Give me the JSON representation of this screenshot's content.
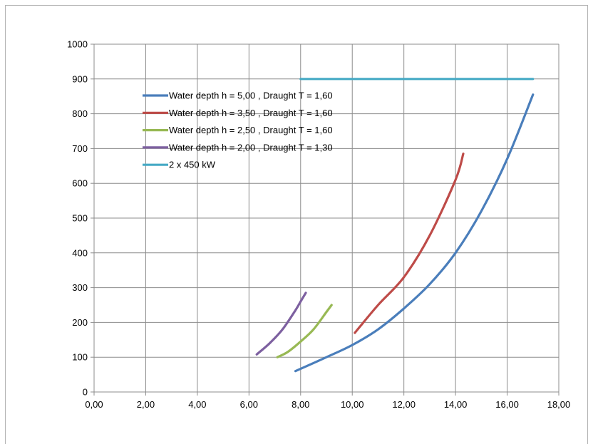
{
  "chart_data": {
    "type": "line",
    "title": "",
    "xlabel": "",
    "ylabel": "",
    "xlim": [
      0,
      18
    ],
    "ylim": [
      0,
      1000
    ],
    "x_ticks": [
      "0,00",
      "2,00",
      "4,00",
      "6,00",
      "8,00",
      "10,00",
      "12,00",
      "14,00",
      "16,00",
      "18,00"
    ],
    "y_ticks": [
      "0",
      "100",
      "200",
      "300",
      "400",
      "500",
      "600",
      "700",
      "800",
      "900",
      "1000"
    ],
    "grid": true,
    "legend_position": "top-left",
    "series": [
      {
        "name": "Water depth h = 5,00 , Draught T = 1,60",
        "color": "#4a7ebb",
        "points": [
          [
            7.8,
            60
          ],
          [
            9.0,
            100
          ],
          [
            10.0,
            135
          ],
          [
            11.0,
            180
          ],
          [
            12.0,
            240
          ],
          [
            13.0,
            310
          ],
          [
            14.0,
            400
          ],
          [
            15.0,
            520
          ],
          [
            16.0,
            670
          ],
          [
            17.0,
            855
          ]
        ]
      },
      {
        "name": "Water depth h = 3,50 , Draught T = 1,60",
        "color": "#be4b48",
        "points": [
          [
            10.1,
            170
          ],
          [
            11.0,
            250
          ],
          [
            12.0,
            330
          ],
          [
            13.0,
            450
          ],
          [
            14.0,
            610
          ],
          [
            14.3,
            685
          ]
        ]
      },
      {
        "name": "Water depth h = 2,50 , Draught T = 1,60",
        "color": "#98b954",
        "points": [
          [
            7.1,
            100
          ],
          [
            7.5,
            115
          ],
          [
            8.0,
            145
          ],
          [
            8.5,
            180
          ],
          [
            9.0,
            230
          ],
          [
            9.2,
            250
          ]
        ]
      },
      {
        "name": "Water depth h = 2,00 , Draught T = 1,30",
        "color": "#7d60a0",
        "points": [
          [
            6.3,
            108
          ],
          [
            6.8,
            140
          ],
          [
            7.3,
            180
          ],
          [
            7.8,
            235
          ],
          [
            8.0,
            260
          ],
          [
            8.2,
            285
          ]
        ]
      },
      {
        "name": "2 x 450 kW",
        "color": "#46aac5",
        "points": [
          [
            8.0,
            900
          ],
          [
            17.0,
            900
          ]
        ]
      }
    ]
  }
}
